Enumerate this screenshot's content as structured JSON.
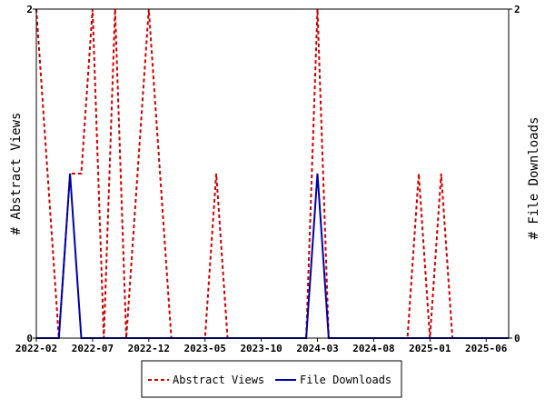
{
  "chart_data": {
    "type": "line",
    "title": "",
    "x_tick_labels": [
      "2022-02",
      "2022-07",
      "2022-12",
      "2023-05",
      "2023-10",
      "2024-03",
      "2024-08",
      "2025-01",
      "2025-06"
    ],
    "y_left": {
      "label": "# Abstract Views",
      "ylim": [
        0,
        2
      ],
      "tick_labels": [
        "0",
        "2"
      ]
    },
    "y_right": {
      "label": "# File Downloads",
      "ylim": [
        0,
        2
      ],
      "tick_labels": [
        "0",
        "2"
      ]
    },
    "x_months": [
      "2022-02",
      "2022-03",
      "2022-04",
      "2022-05",
      "2022-06",
      "2022-07",
      "2022-08",
      "2022-09",
      "2022-10",
      "2022-11",
      "2022-12",
      "2023-01",
      "2023-02",
      "2023-03",
      "2023-04",
      "2023-05",
      "2023-06",
      "2023-07",
      "2023-08",
      "2023-09",
      "2023-10",
      "2023-11",
      "2023-12",
      "2024-01",
      "2024-02",
      "2024-03",
      "2024-04",
      "2024-05",
      "2024-06",
      "2024-07",
      "2024-08",
      "2024-09",
      "2024-10",
      "2024-11",
      "2024-12",
      "2025-01",
      "2025-02",
      "2025-03",
      "2025-04",
      "2025-05",
      "2025-06",
      "2025-07",
      "2025-08"
    ],
    "series": [
      {
        "name": "Abstract Views",
        "color": "#cc0000",
        "style": "dashed",
        "axis": "left",
        "values": [
          2,
          1,
          0,
          1,
          1,
          2,
          0,
          2,
          0,
          1,
          2,
          1,
          0,
          0,
          0,
          0,
          1,
          0,
          0,
          0,
          0,
          0,
          0,
          0,
          0,
          2,
          0,
          0,
          0,
          0,
          0,
          0,
          0,
          0,
          1,
          0,
          1,
          0,
          0,
          0,
          0,
          0,
          0
        ]
      },
      {
        "name": "File Downloads",
        "color": "#0000aa",
        "style": "solid",
        "axis": "right",
        "values": [
          0,
          0,
          0,
          1,
          0,
          0,
          0,
          0,
          0,
          0,
          0,
          0,
          0,
          0,
          0,
          0,
          0,
          0,
          0,
          0,
          0,
          0,
          0,
          0,
          0,
          1,
          0,
          0,
          0,
          0,
          0,
          0,
          0,
          0,
          0,
          0,
          0,
          0,
          0,
          0,
          0,
          0,
          0
        ]
      }
    ],
    "legend_position": "bottom",
    "grid": false
  }
}
